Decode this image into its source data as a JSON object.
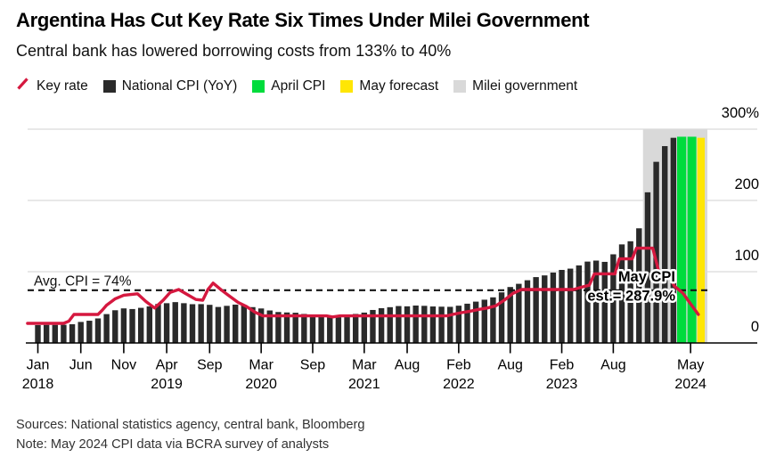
{
  "header": {
    "title": "Argentina Has Cut Key Rate Six Times Under Milei Government",
    "subtitle": "Central bank has lowered borrowing costs from 133% to 40%"
  },
  "legend": [
    {
      "label": "Key rate",
      "swatch": "line",
      "color": "#D5183F"
    },
    {
      "label": "National CPI (YoY)",
      "swatch": "square",
      "color": "#2A2A2A"
    },
    {
      "label": "April CPI",
      "swatch": "square",
      "color": "#00DC3C"
    },
    {
      "label": "May forecast",
      "swatch": "square",
      "color": "#FFE605"
    },
    {
      "label": "Milei government",
      "swatch": "square",
      "color": "#D9D9D9"
    }
  ],
  "footer": {
    "sources": "Sources: National statistics agency, central bank, Bloomberg",
    "note": "Note: May 2024 CPI data via BCRA survey of analysts"
  },
  "chart_data": {
    "type": "bar+line",
    "title": "Argentina Has Cut Key Rate Six Times Under Milei Government",
    "ylim": [
      0,
      300
    ],
    "grid": true,
    "y_ticks": [
      {
        "value": 0,
        "label": "0"
      },
      {
        "value": 100,
        "label": "100"
      },
      {
        "value": 200,
        "label": "200"
      },
      {
        "value": 300,
        "label": "300%"
      }
    ],
    "x_ticks": [
      {
        "month_index": 0,
        "label": "Jan",
        "year": "2018"
      },
      {
        "month_index": 5,
        "label": "Jun"
      },
      {
        "month_index": 10,
        "label": "Nov"
      },
      {
        "month_index": 15,
        "label": "Apr",
        "year": "2019"
      },
      {
        "month_index": 20,
        "label": "Sep"
      },
      {
        "month_index": 26,
        "label": "Mar",
        "year": "2020"
      },
      {
        "month_index": 32,
        "label": "Sep"
      },
      {
        "month_index": 38,
        "label": "Mar",
        "year": "2021"
      },
      {
        "month_index": 43,
        "label": "Aug"
      },
      {
        "month_index": 49,
        "label": "Feb",
        "year": "2022"
      },
      {
        "month_index": 55,
        "label": "Aug"
      },
      {
        "month_index": 61,
        "label": "Feb",
        "year": "2023"
      },
      {
        "month_index": 67,
        "label": "Aug"
      },
      {
        "month_index": 76,
        "label": "May",
        "year": "2024"
      }
    ],
    "series": [
      {
        "name": "National CPI (YoY)",
        "type": "bar",
        "color": "#2A2A2A",
        "unit": "% YoY",
        "start": "Jan 2018",
        "end": "Mar 2024",
        "values": [
          25.0,
          25.4,
          25.4,
          25.5,
          26.3,
          29.5,
          31.2,
          34.4,
          40.5,
          45.9,
          48.5,
          47.6,
          49.3,
          51.3,
          54.7,
          55.8,
          57.3,
          55.8,
          54.4,
          54.5,
          53.5,
          50.5,
          52.1,
          53.8,
          52.9,
          50.3,
          48.4,
          45.6,
          43.4,
          42.8,
          42.4,
          40.7,
          36.6,
          37.2,
          35.8,
          36.1,
          38.5,
          40.7,
          42.6,
          46.3,
          48.8,
          50.2,
          51.8,
          51.4,
          52.5,
          52.1,
          51.2,
          50.9,
          50.7,
          52.3,
          55.1,
          58.0,
          60.7,
          64.0,
          71.0,
          78.5,
          83.0,
          88.0,
          92.4,
          94.8,
          98.8,
          102.5,
          104.3,
          108.8,
          114.2,
          115.6,
          113.8,
          124.4,
          138.3,
          142.7,
          160.9,
          211.4,
          254.2,
          276.2,
          287.9
        ]
      },
      {
        "name": "April CPI",
        "type": "bar",
        "color": "#00DC3C",
        "month": "Apr 2024",
        "value": 289.4
      },
      {
        "name": "May forecast",
        "type": "bar",
        "color": "#FFE605",
        "month": "May 2024",
        "value": 287.9
      },
      {
        "name": "Key rate",
        "type": "line",
        "color": "#D5183F",
        "unit": "%",
        "points": [
          [
            -1.2,
            27.5
          ],
          [
            3,
            27.5
          ],
          [
            3.6,
            30.5
          ],
          [
            4.2,
            40
          ],
          [
            7,
            40
          ],
          [
            7.5,
            46
          ],
          [
            8,
            53
          ],
          [
            9,
            62
          ],
          [
            10,
            67
          ],
          [
            11.6,
            69
          ],
          [
            12.6,
            58
          ],
          [
            13.6,
            49
          ],
          [
            14.6,
            60
          ],
          [
            15.4,
            71
          ],
          [
            16.4,
            75
          ],
          [
            17.4,
            68
          ],
          [
            18.4,
            61
          ],
          [
            19.2,
            60
          ],
          [
            19.8,
            75
          ],
          [
            20.4,
            84
          ],
          [
            21.4,
            74
          ],
          [
            22.4,
            65
          ],
          [
            23.3,
            57
          ],
          [
            24.3,
            51
          ],
          [
            25.3,
            43
          ],
          [
            26.2,
            38
          ],
          [
            33.6,
            38
          ],
          [
            34.3,
            36.5
          ],
          [
            35.2,
            38
          ],
          [
            47.6,
            38
          ],
          [
            48.3,
            40
          ],
          [
            49.3,
            42.5
          ],
          [
            50.3,
            44.5
          ],
          [
            51.3,
            47
          ],
          [
            52.3,
            49
          ],
          [
            53.3,
            52
          ],
          [
            54.3,
            60
          ],
          [
            55.3,
            69.5
          ],
          [
            56.3,
            75
          ],
          [
            62.4,
            75
          ],
          [
            63.2,
            78
          ],
          [
            64.2,
            81
          ],
          [
            64.8,
            97
          ],
          [
            67.2,
            97
          ],
          [
            67.7,
            118
          ],
          [
            69.2,
            118
          ],
          [
            69.7,
            133
          ],
          [
            71.6,
            133
          ],
          [
            72.3,
            100
          ],
          [
            73.4,
            100
          ],
          [
            74.1,
            80
          ],
          [
            75.1,
            70
          ],
          [
            75.7,
            60
          ],
          [
            76.3,
            50
          ],
          [
            76.9,
            40
          ]
        ]
      }
    ],
    "avg_line": {
      "label": "Avg. CPI = 74%",
      "value": 74
    },
    "annotation": {
      "line1": "May CPI",
      "line2": "est.= 287.9%"
    },
    "milei_region": {
      "label": "Milei government",
      "start": "Dec 2023",
      "start_month_index": 71,
      "color": "#D9D9D9"
    }
  }
}
